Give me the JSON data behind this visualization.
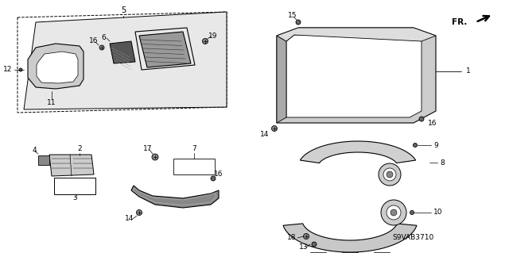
{
  "title": "S9VAB3710",
  "bg_color": "#ffffff",
  "lc": "#000000",
  "fig_width": 6.4,
  "fig_height": 3.19,
  "dpi": 100
}
